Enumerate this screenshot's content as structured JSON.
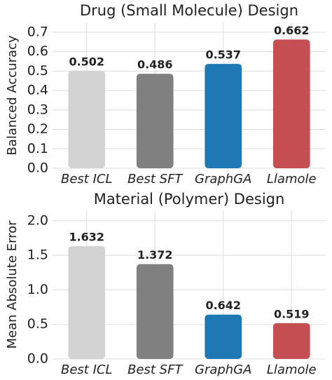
{
  "chart_data": [
    {
      "type": "bar",
      "title": "Drug (Small Molecule) Design",
      "y_label": "Balanced Accuracy",
      "categories": [
        "Best ICL",
        "Best SFT",
        "GraphGA",
        "Llamole"
      ],
      "values": [
        0.502,
        0.486,
        0.537,
        0.662
      ],
      "colors": [
        "#d3d3d3",
        "#808080",
        "#1f77b4",
        "#c44e52"
      ],
      "ylim": [
        0,
        0.75
      ],
      "yticks": [
        {
          "value": 0,
          "label": "0.0"
        },
        0.1,
        0.2,
        0.3,
        0.4,
        0.5,
        0.6,
        0.7
      ],
      "grid": true
    },
    {
      "type": "bar",
      "title": "Material (Polymer) Design",
      "y_label": "Mean Absolute Error",
      "categories": [
        "Best ICL",
        "Best SFT",
        "GraphGA",
        "Llamole"
      ],
      "values": [
        1.632,
        1.372,
        0.642,
        0.519
      ],
      "colors": [
        "#d3d3d3",
        "#808080",
        "#1f77b4",
        "#c44e52"
      ],
      "ylim": [
        0,
        2.15
      ],
      "yticks": [
        {
          "value": 0,
          "label": "0.0"
        },
        0.5,
        {
          "value": 1,
          "label": "1.0"
        },
        1.5,
        {
          "value": 2,
          "label": "2.0"
        }
      ],
      "grid": true
    }
  ]
}
